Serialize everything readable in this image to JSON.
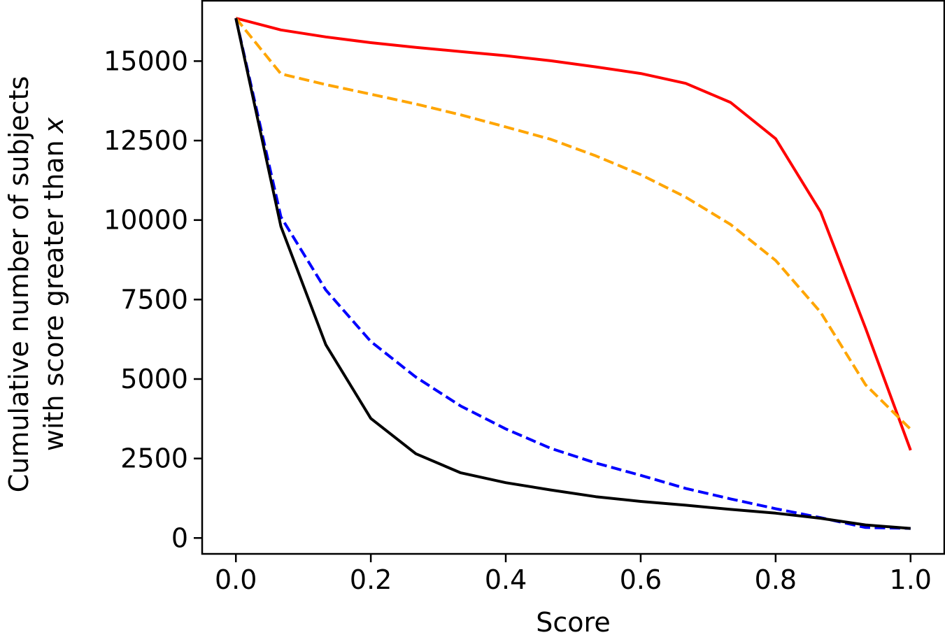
{
  "chart_data": {
    "type": "line",
    "title": "",
    "xlabel": "Score",
    "ylabel_lines": [
      "Cumulative number of subjects",
      "with score greater than"
    ],
    "ylabel_var": "x",
    "xlim": [
      -0.05,
      1.05
    ],
    "ylim": [
      -500,
      16900
    ],
    "xticks": [
      0.0,
      0.2,
      0.4,
      0.6,
      0.8,
      1.0
    ],
    "xtick_labels": [
      "0.0",
      "0.2",
      "0.4",
      "0.6",
      "0.8",
      "1.0"
    ],
    "yticks": [
      0,
      2500,
      5000,
      7500,
      10000,
      12500,
      15000
    ],
    "ytick_labels": [
      "0",
      "2500",
      "5000",
      "7500",
      "10000",
      "12500",
      "15000"
    ],
    "grid": false,
    "legend": "none",
    "x": [
      0.0,
      0.0667,
      0.1333,
      0.2,
      0.2667,
      0.3333,
      0.4,
      0.4667,
      0.5333,
      0.6,
      0.6667,
      0.7333,
      0.8,
      0.8667,
      0.9333,
      1.0
    ],
    "series": [
      {
        "color": "#ff0000",
        "dash": "solid",
        "values": [
          16350,
          15980,
          15760,
          15580,
          15430,
          15300,
          15170,
          15010,
          14820,
          14610,
          14300,
          13700,
          12560,
          10260,
          6600,
          2760
        ]
      },
      {
        "color": "#ffa500",
        "dash": "dashed",
        "values": [
          16350,
          14600,
          14260,
          13960,
          13650,
          13310,
          12930,
          12540,
          12020,
          11430,
          10720,
          9860,
          8730,
          7100,
          4820,
          3420
        ]
      },
      {
        "color": "#0000ff",
        "dash": "dashed",
        "values": [
          16350,
          10100,
          7800,
          6180,
          5060,
          4150,
          3430,
          2820,
          2360,
          1970,
          1560,
          1230,
          920,
          640,
          330,
          300
        ]
      },
      {
        "color": "#000000",
        "dash": "solid",
        "values": [
          16350,
          9800,
          6080,
          3760,
          2650,
          2050,
          1740,
          1510,
          1300,
          1150,
          1030,
          900,
          780,
          620,
          410,
          300
        ]
      }
    ]
  }
}
